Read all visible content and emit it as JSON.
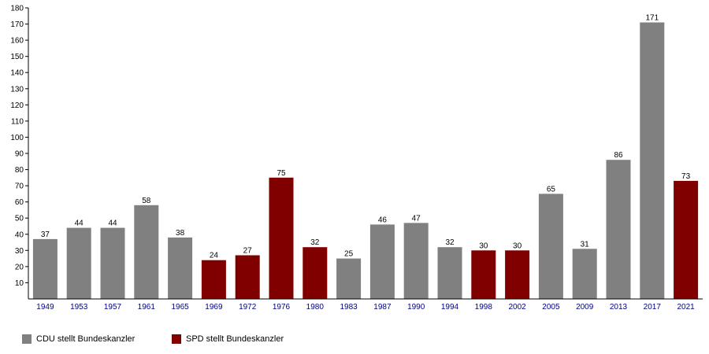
{
  "chart_data": {
    "type": "bar",
    "title": "",
    "xlabel": "",
    "ylabel": "",
    "ylim": [
      0,
      180
    ],
    "yticks": [
      10,
      20,
      30,
      40,
      50,
      60,
      70,
      80,
      90,
      100,
      110,
      120,
      130,
      140,
      150,
      160,
      170,
      180
    ],
    "grid": false,
    "legend_position": "bottom-left",
    "categories": [
      "1949",
      "1953",
      "1957",
      "1961",
      "1965",
      "1969",
      "1972",
      "1976",
      "1980",
      "1983",
      "1987",
      "1990",
      "1994",
      "1998",
      "2002",
      "2005",
      "2009",
      "2013",
      "2017",
      "2021"
    ],
    "values": [
      37,
      44,
      44,
      58,
      38,
      24,
      27,
      75,
      32,
      25,
      46,
      47,
      32,
      30,
      30,
      65,
      31,
      86,
      171,
      73
    ],
    "data_labels": [
      "37",
      "44",
      "44",
      "58",
      "38",
      "24",
      "27",
      "75",
      "32",
      "25",
      "46",
      "47",
      "32",
      "30",
      "30",
      "65",
      "31",
      "86",
      "171",
      "73"
    ],
    "bar_groups": [
      "cdu",
      "cdu",
      "cdu",
      "cdu",
      "cdu",
      "spd",
      "spd",
      "spd",
      "spd",
      "cdu",
      "cdu",
      "cdu",
      "cdu",
      "spd",
      "spd",
      "cdu",
      "cdu",
      "cdu",
      "cdu",
      "spd"
    ],
    "legend": [
      {
        "key": "cdu",
        "label": "CDU stellt Bundeskanzler",
        "color": "#808080"
      },
      {
        "key": "spd",
        "label": "SPD stellt Bundeskanzler",
        "color": "#800000"
      }
    ],
    "colors": {
      "tick_label_x": "#000080",
      "axis": "#000000"
    }
  }
}
